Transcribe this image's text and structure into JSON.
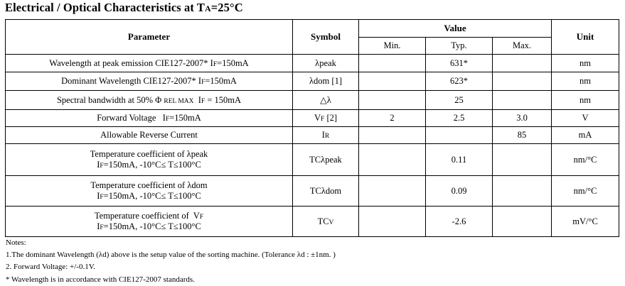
{
  "title": {
    "main": "Electrical / Optical Characteristics at T",
    "sub": "A",
    "rest": "=25°C"
  },
  "header": {
    "parameter": "Parameter",
    "symbol": "Symbol",
    "value": "Value",
    "min": "Min.",
    "typ": "Typ.",
    "max": "Max.",
    "unit": "Unit"
  },
  "rows": [
    {
      "p1a": "Wavelength at peak emission CIE127-2007* I",
      "p1s": "F",
      "p1b": "=150mA",
      "sym": "λpeak",
      "min": "",
      "typ": "631*",
      "max": "",
      "unit": "nm"
    },
    {
      "p1a": "Dominant Wavelength  CIE127-2007* I",
      "p1s": "F",
      "p1b": "=150mA",
      "sym": "λdom [1]",
      "min": "",
      "typ": "623*",
      "max": "",
      "unit": "nm"
    },
    {
      "p1a": "Spectral bandwidth at 50% Φ ",
      "p1s": "REL MAX",
      "p1b": "  I",
      "p1s2": "F",
      "p1c": " = 150mA",
      "sym": "△λ",
      "min": "",
      "typ": "25",
      "max": "",
      "unit": "nm"
    },
    {
      "p1a": "Forward Voltage   I",
      "p1s": "F",
      "p1b": "=150mA",
      "sym": "V",
      "syms": "F",
      "symb": " [2]",
      "min": "2",
      "typ": "2.5",
      "max": "3.0",
      "unit": "V"
    },
    {
      "p1a": "Allowable Reverse Current",
      "sym": "I",
      "syms": "R",
      "min": "",
      "typ": "",
      "max": "85",
      "unit": "mA"
    },
    {
      "p1a": "Temperature coefficient of λpeak",
      "p2a": "I",
      "p2s": "F",
      "p2b": "=150mA, -10°C≤ T≤100°C",
      "sym": "TCλpeak",
      "min": "",
      "typ": "0.11",
      "max": "",
      "unit": "nm/°C"
    },
    {
      "p1a": "Temperature coefficient of λdom",
      "p2a": "I",
      "p2s": "F",
      "p2b": "=150mA, -10°C≤ T≤100°C",
      "sym": "TCλdom",
      "min": "",
      "typ": "0.09",
      "max": "",
      "unit": "nm/°C"
    },
    {
      "p1a": "Temperature coefficient of  V",
      "p1s": "F",
      "p2a": "I",
      "p2s": "F",
      "p2b": "=150mA, -10°C≤ T≤100°C",
      "sym": "TC",
      "syms": "V",
      "min": "",
      "typ": "-2.6",
      "max": "",
      "unit": "mV/°C"
    }
  ],
  "notes": [
    "Notes:",
    "1.The dominant Wavelength (λd) above is the setup value of the sorting machine.  (Tolerance  λd : ±1nm. )",
    "2. Forward Voltage: +/-0.1V.",
    "* Wavelength is in accordance with CIE127-2007 standards."
  ]
}
